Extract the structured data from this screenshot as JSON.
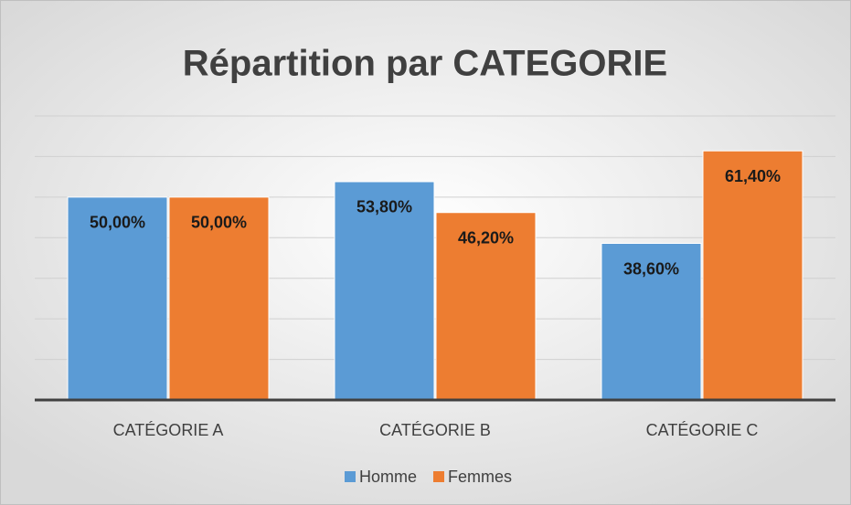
{
  "chart_data": {
    "type": "bar",
    "title": "Répartition par CATEGORIE",
    "categories": [
      "CATÉGORIE A",
      "CATÉGORIE B",
      "CATÉGORIE C"
    ],
    "series": [
      {
        "name": "Homme",
        "color": "#5b9bd5",
        "values": [
          50,
          53.8,
          38.6
        ],
        "value_labels": [
          "50,00%",
          "53,80%",
          "38,60%"
        ]
      },
      {
        "name": "Femmes",
        "color": "#ed7d31",
        "values": [
          50,
          46.2,
          61.4
        ],
        "value_labels": [
          "50,00%",
          "46,20%",
          "61,40%"
        ]
      }
    ],
    "ylim": [
      0,
      70
    ],
    "yticks": [
      0,
      10,
      20,
      30,
      40,
      50,
      60,
      70
    ],
    "grid": true,
    "legend": "bottom"
  }
}
